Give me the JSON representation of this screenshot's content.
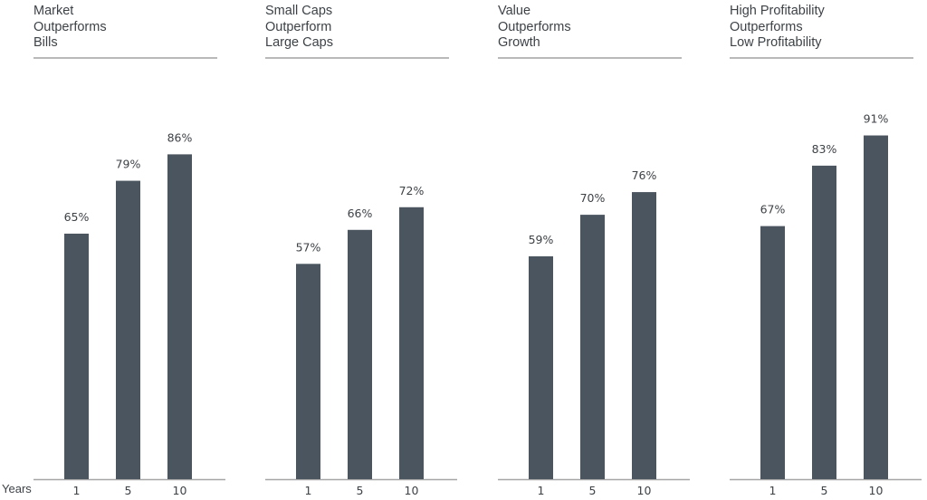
{
  "x_axis_label": "Years",
  "colors": {
    "bar": "#4b5560",
    "text": "#3d4247",
    "axis": "#a6a6a6",
    "rule": "#b9b9b9"
  },
  "chart_data": [
    {
      "type": "bar",
      "title_lines": [
        "Market",
        "Outperforms",
        "Bills"
      ],
      "categories": [
        "1",
        "5",
        "10"
      ],
      "values": [
        65,
        79,
        86
      ],
      "labels": [
        "65%",
        "79%",
        "86%"
      ],
      "ylim": [
        0,
        100
      ]
    },
    {
      "type": "bar",
      "title_lines": [
        "Small Caps",
        "Outperform",
        "Large Caps"
      ],
      "categories": [
        "1",
        "5",
        "10"
      ],
      "values": [
        57,
        66,
        72
      ],
      "labels": [
        "57%",
        "66%",
        "72%"
      ],
      "ylim": [
        0,
        100
      ]
    },
    {
      "type": "bar",
      "title_lines": [
        "Value",
        "Outperforms",
        "Growth"
      ],
      "categories": [
        "1",
        "5",
        "10"
      ],
      "values": [
        59,
        70,
        76
      ],
      "labels": [
        "59%",
        "70%",
        "76%"
      ],
      "ylim": [
        0,
        100
      ]
    },
    {
      "type": "bar",
      "title_lines": [
        "High Profitability",
        "Outperforms",
        "Low Profitability"
      ],
      "categories": [
        "1",
        "5",
        "10"
      ],
      "values": [
        67,
        83,
        91
      ],
      "labels": [
        "67%",
        "83%",
        "91%"
      ],
      "ylim": [
        0,
        100
      ]
    }
  ]
}
